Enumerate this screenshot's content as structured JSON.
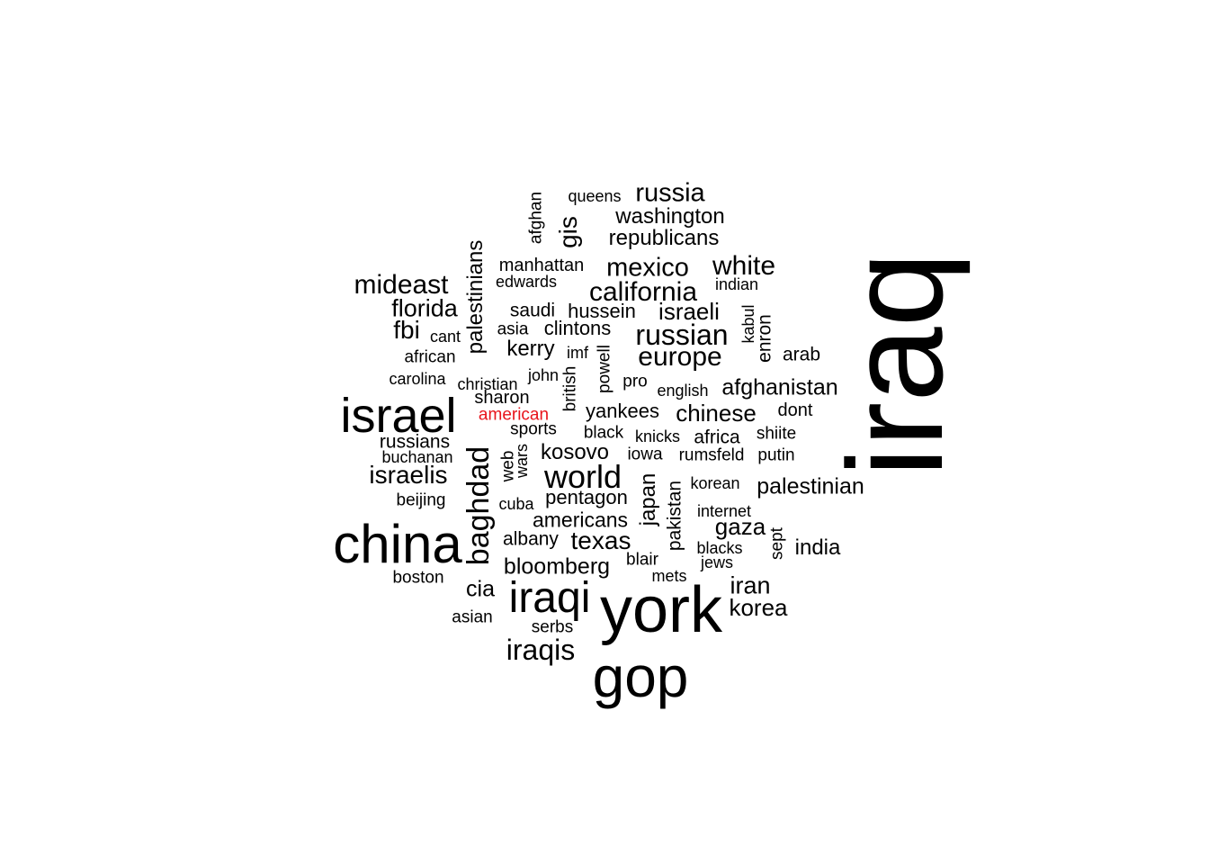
{
  "chart_data": {
    "type": "wordcloud",
    "title": "",
    "highlight_color": "#e8141b",
    "default_color": "#000000",
    "words": [
      {
        "text": "iraq",
        "weight": 100,
        "rotated": true
      },
      {
        "text": "york",
        "weight": 72
      },
      {
        "text": "gop",
        "weight": 64
      },
      {
        "text": "china",
        "weight": 60
      },
      {
        "text": "israel",
        "weight": 54
      },
      {
        "text": "iraqi",
        "weight": 48
      },
      {
        "text": "world",
        "weight": 36
      },
      {
        "text": "baghdad",
        "weight": 34,
        "rotated": true
      },
      {
        "text": "russian",
        "weight": 32
      },
      {
        "text": "iraqis",
        "weight": 32
      },
      {
        "text": "mideast",
        "weight": 30
      },
      {
        "text": "europe",
        "weight": 30
      },
      {
        "text": "california",
        "weight": 30
      },
      {
        "text": "white",
        "weight": 30
      },
      {
        "text": "mexico",
        "weight": 29
      },
      {
        "text": "russia",
        "weight": 29
      },
      {
        "text": "gis",
        "weight": 28,
        "rotated": true
      },
      {
        "text": "fbi",
        "weight": 28
      },
      {
        "text": "israelis",
        "weight": 28
      },
      {
        "text": "texas",
        "weight": 28
      },
      {
        "text": "florida",
        "weight": 27
      },
      {
        "text": "iran",
        "weight": 27
      },
      {
        "text": "korea",
        "weight": 26
      },
      {
        "text": "chinese",
        "weight": 26
      },
      {
        "text": "israeli",
        "weight": 26
      },
      {
        "text": "gaza",
        "weight": 26
      },
      {
        "text": "palestinian",
        "weight": 25
      },
      {
        "text": "afghanistan",
        "weight": 25
      },
      {
        "text": "bloomberg",
        "weight": 25
      },
      {
        "text": "cia",
        "weight": 25
      },
      {
        "text": "india",
        "weight": 24
      },
      {
        "text": "palestinians",
        "weight": 24,
        "rotated": true
      },
      {
        "text": "japan",
        "weight": 24,
        "rotated": true
      },
      {
        "text": "kosovo",
        "weight": 24
      },
      {
        "text": "kerry",
        "weight": 24
      },
      {
        "text": "republicans",
        "weight": 24
      },
      {
        "text": "washington",
        "weight": 24
      },
      {
        "text": "americans",
        "weight": 23
      },
      {
        "text": "pentagon",
        "weight": 22
      },
      {
        "text": "yankees",
        "weight": 22
      },
      {
        "text": "hussein",
        "weight": 22
      },
      {
        "text": "clintons",
        "weight": 22
      },
      {
        "text": "saudi",
        "weight": 21
      },
      {
        "text": "russians",
        "weight": 21
      },
      {
        "text": "albany",
        "weight": 21
      },
      {
        "text": "africa",
        "weight": 21
      },
      {
        "text": "arab",
        "weight": 21
      },
      {
        "text": "pakistan",
        "weight": 21,
        "rotated": true
      },
      {
        "text": "enron",
        "weight": 21,
        "rotated": true
      },
      {
        "text": "sharon",
        "weight": 20
      },
      {
        "text": "dont",
        "weight": 20
      },
      {
        "text": "manhattan",
        "weight": 20
      },
      {
        "text": "beijing",
        "weight": 19
      },
      {
        "text": "boston",
        "weight": 19
      },
      {
        "text": "sports",
        "weight": 19
      },
      {
        "text": "black",
        "weight": 19
      },
      {
        "text": "asian",
        "weight": 19
      },
      {
        "text": "serbs",
        "weight": 19
      },
      {
        "text": "blair",
        "weight": 19
      },
      {
        "text": "rumsfeld",
        "weight": 19
      },
      {
        "text": "putin",
        "weight": 19
      },
      {
        "text": "asia",
        "weight": 19
      },
      {
        "text": "african",
        "weight": 19
      },
      {
        "text": "iowa",
        "weight": 19
      },
      {
        "text": "shiite",
        "weight": 19
      },
      {
        "text": "pro",
        "weight": 19
      },
      {
        "text": "american",
        "weight": 19,
        "highlight": true
      },
      {
        "text": "powell",
        "weight": 19,
        "rotated": true
      },
      {
        "text": "british",
        "weight": 19,
        "rotated": true
      },
      {
        "text": "web",
        "weight": 19,
        "rotated": true
      },
      {
        "text": "sept",
        "weight": 19,
        "rotated": true
      },
      {
        "text": "afghan",
        "weight": 19,
        "rotated": true
      },
      {
        "text": "john",
        "weight": 18
      },
      {
        "text": "carolina",
        "weight": 18
      },
      {
        "text": "knicks",
        "weight": 18
      },
      {
        "text": "korean",
        "weight": 18
      },
      {
        "text": "queens",
        "weight": 18
      },
      {
        "text": "imf",
        "weight": 18
      },
      {
        "text": "cant",
        "weight": 18
      },
      {
        "text": "edwards",
        "weight": 18
      },
      {
        "text": "indian",
        "weight": 18
      },
      {
        "text": "christian",
        "weight": 18
      },
      {
        "text": "english",
        "weight": 18
      },
      {
        "text": "buchanan",
        "weight": 18
      },
      {
        "text": "cuba",
        "weight": 18
      },
      {
        "text": "internet",
        "weight": 18
      },
      {
        "text": "blacks",
        "weight": 18
      },
      {
        "text": "jews",
        "weight": 18
      },
      {
        "text": "mets",
        "weight": 18
      },
      {
        "text": "kabul",
        "weight": 18,
        "rotated": true
      },
      {
        "text": "wars",
        "weight": 18,
        "rotated": true
      }
    ]
  }
}
